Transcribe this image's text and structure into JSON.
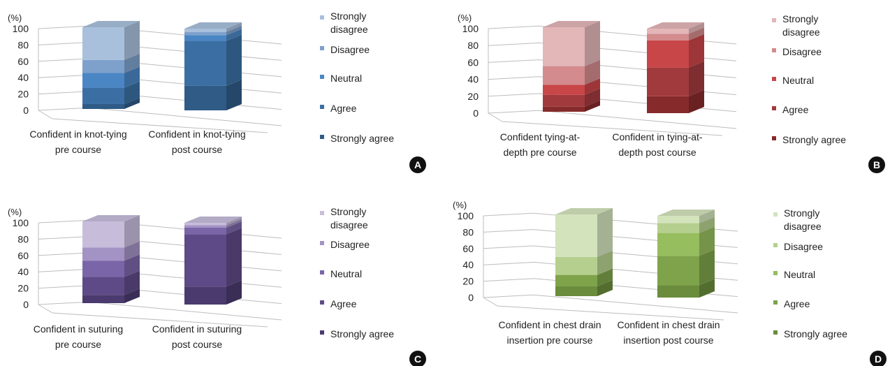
{
  "figure": {
    "unit_label": "(%)",
    "legend_labels": [
      "Strongly disagree",
      "Disagree",
      "Neutral",
      "Agree",
      "Strongly agree"
    ]
  },
  "chart_data": [
    {
      "type": "bar",
      "stacked": true,
      "panel": "A",
      "ylabel": "(%)",
      "ylim": [
        0,
        100
      ],
      "yticks": [
        0,
        20,
        40,
        60,
        80,
        100
      ],
      "grid": true,
      "legend_position": "right",
      "categories": [
        "Confident in knot-tying pre course",
        "Confident in knot-tying post course"
      ],
      "series": [
        {
          "name": "Strongly agree",
          "values": [
            6,
            30
          ],
          "color": "#2f5b86"
        },
        {
          "name": "Agree",
          "values": [
            20,
            55
          ],
          "color": "#3b6fa3"
        },
        {
          "name": "Neutral",
          "values": [
            18,
            7
          ],
          "color": "#4a86c4"
        },
        {
          "name": "Disagree",
          "values": [
            16,
            4
          ],
          "color": "#7ea1cc"
        },
        {
          "name": "Strongly disagree",
          "values": [
            40,
            4
          ],
          "color": "#a9c0dc"
        }
      ]
    },
    {
      "type": "bar",
      "stacked": true,
      "panel": "B",
      "ylabel": "(%)",
      "ylim": [
        0,
        100
      ],
      "yticks": [
        0,
        20,
        40,
        60,
        80,
        100
      ],
      "grid": true,
      "legend_position": "right",
      "categories": [
        "Confident tying-at-depth pre course",
        "Confident in tying-at-depth post course"
      ],
      "series": [
        {
          "name": "Strongly agree",
          "values": [
            6,
            20
          ],
          "color": "#862a2c"
        },
        {
          "name": "Agree",
          "values": [
            14,
            34
          ],
          "color": "#a13a3d"
        },
        {
          "name": "Neutral",
          "values": [
            12,
            32
          ],
          "color": "#c84548"
        },
        {
          "name": "Disagree",
          "values": [
            22,
            8
          ],
          "color": "#d38b8d"
        },
        {
          "name": "Strongly disagree",
          "values": [
            46,
            6
          ],
          "color": "#e3b6b8"
        }
      ]
    },
    {
      "type": "bar",
      "stacked": true,
      "panel": "C",
      "ylabel": "(%)",
      "ylim": [
        0,
        100
      ],
      "yticks": [
        0,
        20,
        40,
        60,
        80,
        100
      ],
      "grid": true,
      "legend_position": "right",
      "categories": [
        "Confident in suturing pre course",
        "Confident in suturing post course"
      ],
      "series": [
        {
          "name": "Strongly agree",
          "values": [
            10,
            22
          ],
          "color": "#4a3a6e"
        },
        {
          "name": "Agree",
          "values": [
            22,
            64
          ],
          "color": "#5e4a86"
        },
        {
          "name": "Neutral",
          "values": [
            20,
            8
          ],
          "color": "#7a65a8"
        },
        {
          "name": "Disagree",
          "values": [
            16,
            3
          ],
          "color": "#a392c4"
        },
        {
          "name": "Strongly disagree",
          "values": [
            32,
            3
          ],
          "color": "#c7bddb"
        }
      ]
    },
    {
      "type": "bar",
      "stacked": true,
      "panel": "D",
      "ylabel": "(%)",
      "ylim": [
        0,
        100
      ],
      "yticks": [
        0,
        20,
        40,
        60,
        80,
        100
      ],
      "grid": true,
      "legend_position": "right",
      "categories": [
        "Confident in chest drain insertion pre course",
        "Confident in chest drain insertion post course"
      ],
      "series": [
        {
          "name": "Strongly agree",
          "values": [
            12,
            15
          ],
          "color": "#6a8c3c"
        },
        {
          "name": "Agree",
          "values": [
            14,
            36
          ],
          "color": "#7ea34a"
        },
        {
          "name": "Neutral",
          "values": [
            0,
            28
          ],
          "color": "#96bd5e"
        },
        {
          "name": "Disagree",
          "values": [
            22,
            12
          ],
          "color": "#b5d08e"
        },
        {
          "name": "Strongly disagree",
          "values": [
            52,
            9
          ],
          "color": "#d3e3bc"
        }
      ]
    }
  ],
  "panels": [
    {
      "letter": "A",
      "xlabels": [
        [
          "Confident in knot-tying",
          "pre course"
        ],
        [
          "Confident in knot-tying",
          "post course"
        ]
      ]
    },
    {
      "letter": "B",
      "xlabels": [
        [
          "Confident tying-at-",
          "depth pre course"
        ],
        [
          "Confident in tying-at-",
          "depth post course"
        ]
      ]
    },
    {
      "letter": "C",
      "xlabels": [
        [
          "Confident in suturing",
          "pre course"
        ],
        [
          "Confident in suturing",
          "post course"
        ]
      ]
    },
    {
      "letter": "D",
      "xlabels": [
        [
          "Confident in chest drain",
          "insertion pre course"
        ],
        [
          "Confident in chest drain",
          "insertion post course"
        ]
      ]
    }
  ]
}
